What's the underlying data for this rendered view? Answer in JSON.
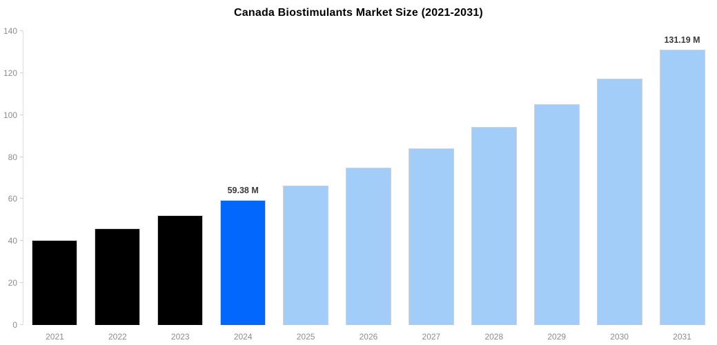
{
  "title": "Canada Biostimulants Market Size (2021-2031)",
  "chart_data": {
    "type": "bar",
    "title": "Canada Biostimulants Market Size (2021-2031)",
    "xlabel": "",
    "ylabel": "",
    "categories": [
      "2021",
      "2022",
      "2023",
      "2024",
      "2025",
      "2026",
      "2027",
      "2028",
      "2029",
      "2030",
      "2031"
    ],
    "values": [
      40.3,
      46.0,
      52.3,
      59.38,
      66.5,
      74.8,
      84.2,
      94.2,
      105.1,
      117.2,
      131.19
    ],
    "unit": "M",
    "ylim": [
      0,
      140
    ],
    "yticks": [
      0,
      20,
      40,
      60,
      80,
      100,
      120,
      140
    ],
    "grid": false,
    "legend": null,
    "bar_colors": [
      "#000000",
      "#000000",
      "#000000",
      "#0267fc",
      "#a2cdf9",
      "#a2cdf9",
      "#a2cdf9",
      "#a2cdf9",
      "#a2cdf9",
      "#a2cdf9",
      "#a2cdf9"
    ],
    "annotations": [
      {
        "index": 3,
        "text": "59.38 M"
      },
      {
        "index": 10,
        "text": "131.19 M"
      }
    ],
    "colors": {
      "highlight_bar": "#0267fc",
      "forecast_bar": "#a2cdf9",
      "historical_bar": "#000000",
      "axis_line": "#dcdcdc",
      "tick_text": "#8c8c8c",
      "annotation_text": "#3a3a3a",
      "title_text": "#000000",
      "background": "#ffffff"
    }
  }
}
